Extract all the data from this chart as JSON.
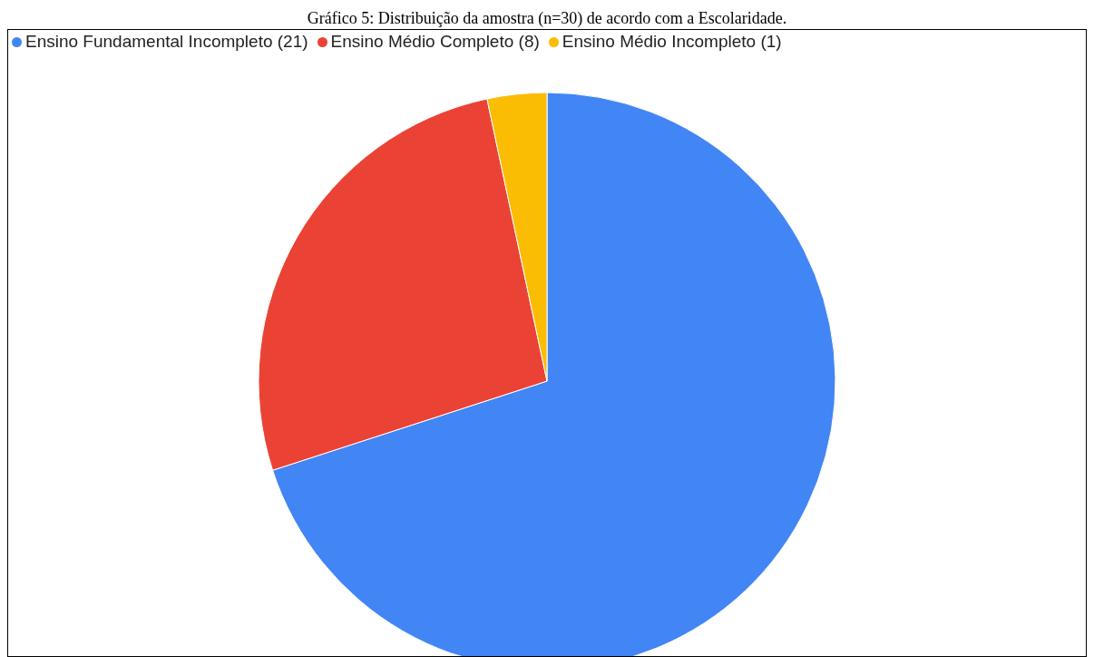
{
  "chart_data": {
    "type": "pie",
    "title": "Gráfico 5: Distribuição da amostra (n=30) de acordo com a Escolaridade.",
    "categories": [
      "Ensino Fundamental Incompleto (21)",
      "Ensino Médio Completo (8)",
      "Ensino Médio Incompleto (1)"
    ],
    "values": [
      21,
      8,
      1
    ],
    "colors": [
      "#4285f4",
      "#ea4335",
      "#fbbc04"
    ],
    "legend": "top left"
  }
}
